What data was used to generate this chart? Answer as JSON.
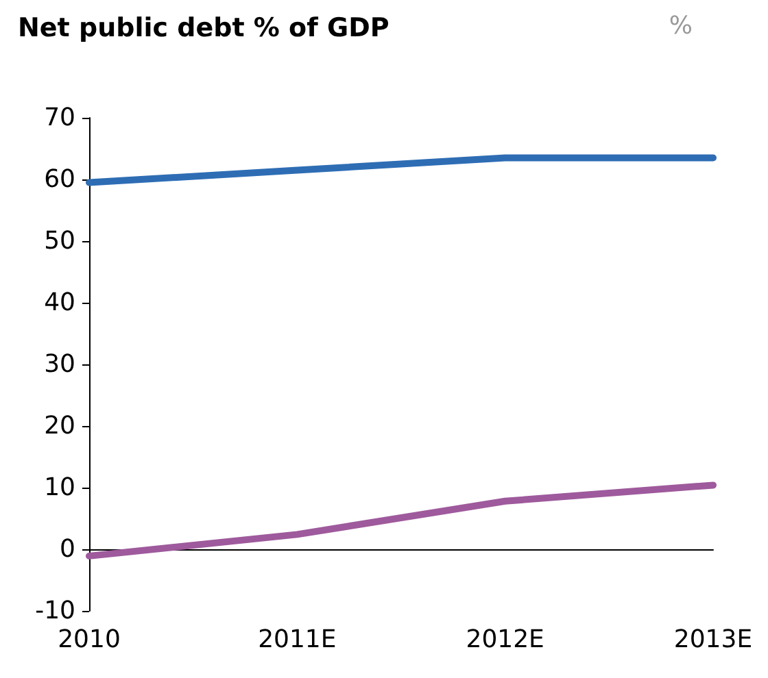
{
  "chart_data": {
    "type": "line",
    "title": "Net public debt % of GDP",
    "ylabel": "%",
    "categories": [
      "2010",
      "2011E",
      "2012E",
      "2013E"
    ],
    "series": [
      {
        "color": "#2e6db4",
        "values": [
          59.5,
          61.5,
          63.5,
          63.5
        ]
      },
      {
        "color": "#9e5a9c",
        "values": [
          -1.1,
          2.4,
          7.8,
          10.4
        ]
      }
    ],
    "ylim": [
      -10,
      70
    ],
    "yticks": [
      -10,
      0,
      10,
      20,
      30,
      40,
      50,
      60,
      70
    ],
    "marker": "none",
    "line_style": "solid"
  }
}
